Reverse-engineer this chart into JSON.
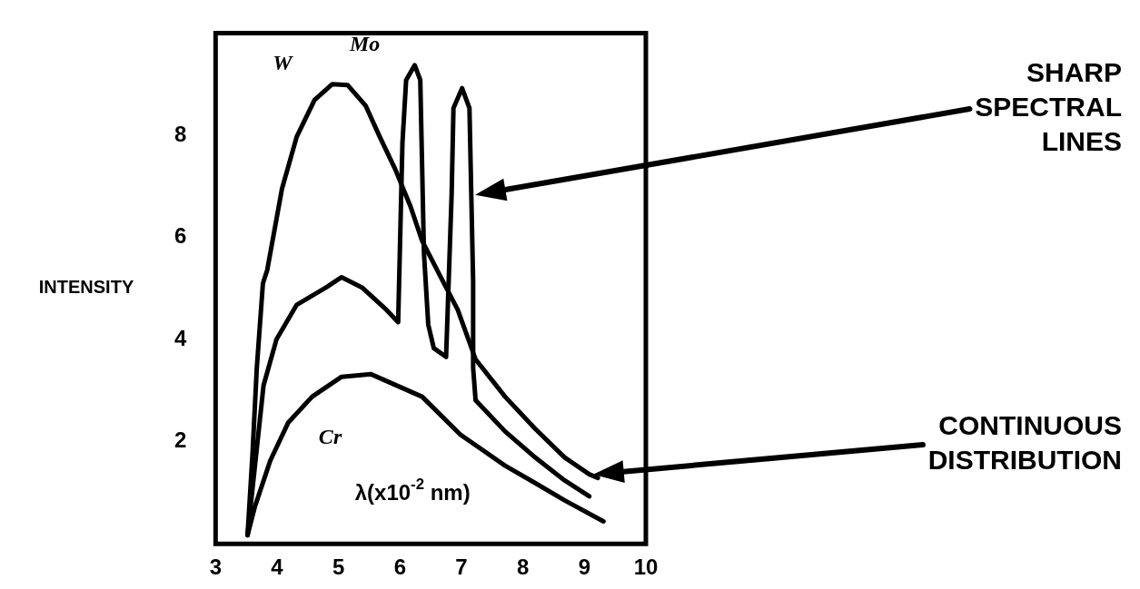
{
  "chart_data": {
    "type": "line",
    "xlabel": "λ(x10$^{-2}$ nm)",
    "ylabel": "INTENSITY",
    "xlim": [
      3,
      10
    ],
    "xticks": [
      3,
      4,
      5,
      6,
      7,
      8,
      9,
      10
    ],
    "ylim": [
      0,
      10
    ],
    "yticks": [
      2,
      4,
      6,
      8
    ],
    "grid": false,
    "legend": false,
    "marker": "none",
    "line_style": "solid",
    "series": [
      {
        "name": "W",
        "color": "#000000",
        "x": [
          3.52,
          3.6,
          3.67,
          3.77,
          3.84,
          4.08,
          4.32,
          4.61,
          4.9,
          5.15,
          5.44,
          5.67,
          5.92,
          6.17,
          6.36,
          6.65,
          6.94,
          7.23,
          7.71,
          8.2,
          8.68,
          9.08,
          9.22
        ],
        "values": [
          0.17,
          1.75,
          3.44,
          5.1,
          5.36,
          6.95,
          7.97,
          8.69,
          9.0,
          8.98,
          8.58,
          7.97,
          7.34,
          6.61,
          5.93,
          5.25,
          4.58,
          3.61,
          2.88,
          2.25,
          1.69,
          1.36,
          1.29
        ]
      },
      {
        "name": "Mo",
        "color": "#000000",
        "x": [
          3.52,
          3.78,
          3.99,
          4.32,
          4.8,
          5.05,
          5.38,
          5.78,
          5.97,
          6.04,
          6.1,
          6.24,
          6.33,
          6.36,
          6.39,
          6.46,
          6.55,
          6.75,
          6.84,
          6.87,
          7.01,
          7.13,
          7.16,
          7.19,
          7.19,
          7.23,
          7.71,
          8.2,
          8.68,
          9.08
        ],
        "values": [
          0.17,
          3.1,
          4.0,
          4.68,
          5.02,
          5.22,
          5.02,
          4.58,
          4.34,
          7.85,
          9.08,
          9.37,
          9.08,
          7.39,
          5.69,
          4.29,
          3.83,
          3.66,
          6.83,
          8.53,
          8.92,
          8.53,
          6.83,
          5.14,
          3.44,
          2.81,
          2.2,
          1.69,
          1.24,
          0.93
        ]
      },
      {
        "name": "Cr",
        "color": "#000000",
        "x": [
          3.52,
          3.64,
          3.89,
          4.18,
          4.57,
          5.05,
          5.53,
          6.36,
          6.98,
          7.71,
          8.2,
          8.68,
          9.31
        ],
        "values": [
          0.17,
          0.73,
          1.63,
          2.37,
          2.88,
          3.27,
          3.32,
          2.88,
          2.14,
          1.53,
          1.19,
          0.85,
          0.44
        ]
      }
    ],
    "annotations": [
      "SHARP SPECTRAL LINES",
      "CONTINUOUS DISTRIBUTION"
    ]
  }
}
